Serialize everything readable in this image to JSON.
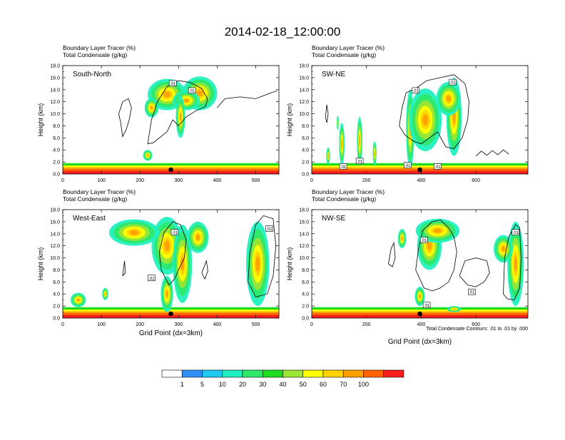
{
  "figure": {
    "title": "2014-02-18_12:00:00",
    "footnote": "Total Condensate Contours: .01 to .01 by .000"
  },
  "colorbar": {
    "labels": [
      "1",
      "5",
      "10",
      "20",
      "30",
      "40",
      "50",
      "60",
      "70",
      "100"
    ],
    "colors": [
      "#ffffff",
      "#2f8ff5",
      "#1ec8f0",
      "#20f0c0",
      "#2ee86a",
      "#1edc1e",
      "#9be634",
      "#ffff00",
      "#ffd200",
      "#ffa000",
      "#ff6400",
      "#ff1e1e"
    ]
  },
  "chart_data": [
    {
      "type": "heatmap",
      "panel": "south-north",
      "label": "South-North",
      "header_line1": "Boundary Layer Tracer   (%)",
      "header_line2": "Total Condensate   (g/kg)",
      "ylabel": "Height (km)",
      "xlabel": "",
      "ylim": [
        0,
        18
      ],
      "yticks": [
        "0.0",
        "2.0",
        "4.0",
        "6.0",
        "8.0",
        "10.0",
        "12.0",
        "14.0",
        "16.0",
        "18.0"
      ],
      "xlim": [
        0,
        560
      ],
      "xticks": [
        0,
        100,
        200,
        300,
        400,
        500
      ],
      "marker_x": 280,
      "contour_labels": [
        {
          "text": ".01",
          "x": 285,
          "y": 15
        },
        {
          "text": ".01",
          "x": 335,
          "y": 13.8
        }
      ]
    },
    {
      "type": "heatmap",
      "panel": "sw-ne",
      "label": "SW-NE",
      "header_line1": "Boundary Layer Tracer   (%)",
      "header_line2": "Total Condensate   (g/kg)",
      "ylabel": "Height (km)",
      "xlabel": "",
      "ylim": [
        0,
        18
      ],
      "yticks": [
        "0.0",
        "2.0",
        "4.0",
        "6.0",
        "8.0",
        "10.0",
        "12.0",
        "14.0",
        "16.0",
        "18.0"
      ],
      "xlim": [
        0,
        790
      ],
      "xticks": [
        0,
        200,
        400,
        600
      ],
      "marker_x": 395,
      "contour_labels": [
        {
          "text": ".01",
          "x": 380,
          "y": 13.8
        },
        {
          "text": ".01",
          "x": 515,
          "y": 15.2
        },
        {
          "text": ".01",
          "x": 175,
          "y": 2.1
        },
        {
          "text": ".01",
          "x": 115,
          "y": 1.2
        },
        {
          "text": ".01",
          "x": 350,
          "y": 1.4
        },
        {
          "text": ".01",
          "x": 460,
          "y": 1.2
        }
      ]
    },
    {
      "type": "heatmap",
      "panel": "west-east",
      "label": "West-East",
      "header_line1": "Boundary Layer Tracer   (%)",
      "header_line2": "Total Condensate   (g/kg)",
      "ylabel": "Height (km)",
      "xlabel": "Grid Point (dx=3km)",
      "ylim": [
        0,
        18
      ],
      "yticks": [
        "0.0",
        "2.0",
        "4.0",
        "6.0",
        "8.0",
        "10.0",
        "12.0",
        "14.0",
        "16.0",
        "18.0"
      ],
      "xlim": [
        0,
        560
      ],
      "xticks": [
        0,
        100,
        200,
        300,
        400,
        500
      ],
      "marker_x": 280,
      "contour_labels": [
        {
          "text": ".01",
          "x": 290,
          "y": 14.2
        },
        {
          "text": ".01",
          "x": 535,
          "y": 14.8
        },
        {
          "text": ".01",
          "x": 230,
          "y": 6.6
        }
      ]
    },
    {
      "type": "heatmap",
      "panel": "nw-se",
      "label": "NW-SE",
      "header_line1": "Boundary Layer Tracer   (%)",
      "header_line2": "Total Condensate   (g/kg)",
      "ylabel": "Height (km)",
      "xlabel": "Grid Point (dx=3km)",
      "ylim": [
        0,
        18
      ],
      "yticks": [
        "0.0",
        "2.0",
        "4.0",
        "6.0",
        "8.0",
        "10.0",
        "12.0",
        "14.0",
        "16.0",
        "18.0"
      ],
      "xlim": [
        0,
        790
      ],
      "xticks": [
        0,
        200,
        400,
        600
      ],
      "marker_x": 395,
      "contour_labels": [
        {
          "text": ".01",
          "x": 410,
          "y": 12.9
        },
        {
          "text": ".01",
          "x": 745,
          "y": 14.2
        },
        {
          "text": ".01",
          "x": 585,
          "y": 4.3
        },
        {
          "text": ".01",
          "x": 420,
          "y": 2.1
        }
      ]
    }
  ]
}
